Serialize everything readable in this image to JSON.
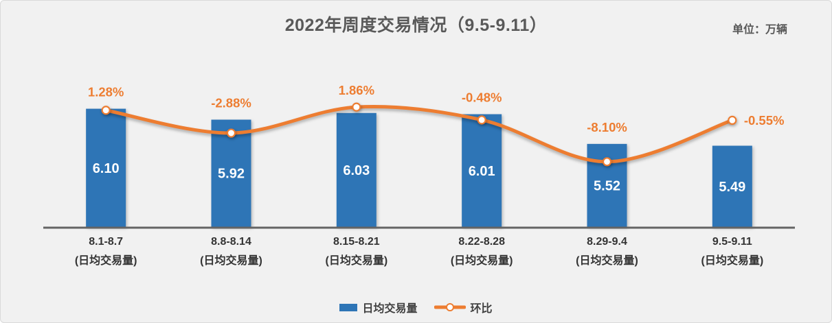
{
  "header": {
    "title": "2022年周度交易情况（9.5-9.11）",
    "unit_label": "单位：万辆"
  },
  "chart_data": {
    "type": "bar+line combo",
    "title": "2022年周度交易情况（9.5-9.11）",
    "unit": "万辆",
    "categories": [
      "8.1-8.7",
      "8.8-8.14",
      "8.15-8.21",
      "8.22-8.28",
      "8.29-9.4",
      "9.5-9.11"
    ],
    "category_sublabel": "(日均交易量)",
    "series": [
      {
        "name": "日均交易量",
        "type": "bar",
        "color": "#2E75B6",
        "values": [
          6.1,
          5.92,
          6.03,
          6.01,
          5.52,
          5.49
        ],
        "labels": [
          "6.10",
          "5.92",
          "6.03",
          "6.01",
          "5.52",
          "5.49"
        ],
        "label_color": "#FFFFFF",
        "axis": {
          "min": 4.15,
          "max": 7.0
        }
      },
      {
        "name": "环比",
        "type": "line",
        "unit": "%",
        "color": "#ED7D31",
        "values": [
          1.28,
          -2.88,
          1.86,
          -0.48,
          -8.1,
          -0.55
        ],
        "labels": [
          "1.28%",
          "-2.88%",
          "1.86%",
          "-0.48%",
          "-8.10%",
          "-0.55%"
        ],
        "marker": {
          "fill": "#FFFFFF",
          "stroke": "#ED7D31"
        },
        "axis": {
          "min": -20,
          "max": 11.5
        }
      }
    ],
    "legend_position": "bottom",
    "grid": false,
    "axis_line_color": "#646464",
    "background": "#F1F1F1"
  },
  "legend": {
    "items": [
      {
        "label": "日均交易量",
        "color": "#2E75B6",
        "swatch": "bar"
      },
      {
        "label": "环比",
        "color": "#ED7D31",
        "swatch": "line-marker"
      }
    ]
  }
}
